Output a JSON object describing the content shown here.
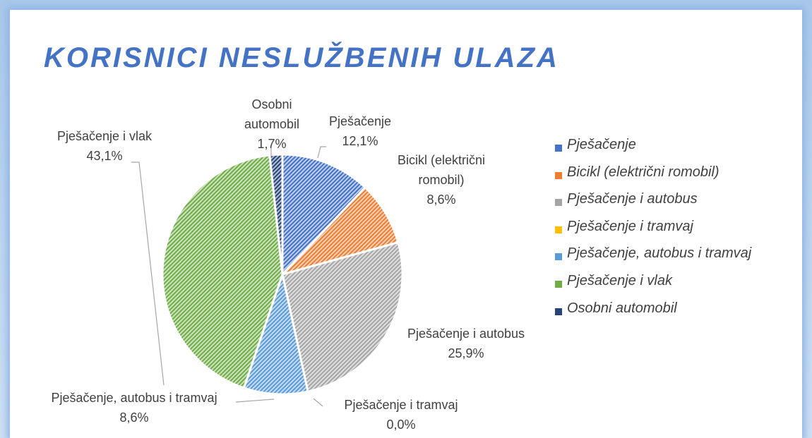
{
  "chart_data": {
    "type": "pie",
    "title": "KORISNICI NESLUŽBENIH ULAZA",
    "categories": [
      "Pješačenje",
      "Bicikl (električni romobil)",
      "Pješačenje i autobus",
      "Pješačenje i tramvaj",
      "Pješačenje, autobus i tramvaj",
      "Pješačenje i vlak",
      "Osobni automobil"
    ],
    "values": [
      12.1,
      8.6,
      25.9,
      0.0,
      8.6,
      43.1,
      1.7
    ],
    "value_labels": [
      "12,1%",
      "8,6%",
      "25,9%",
      "0,0%",
      "8,6%",
      "43,1%",
      "1,7%"
    ],
    "colors": [
      "#4472c4",
      "#ed7d31",
      "#a5a5a5",
      "#ffc000",
      "#5b9bd5",
      "#70ad47",
      "#264478"
    ],
    "legend": "right"
  }
}
